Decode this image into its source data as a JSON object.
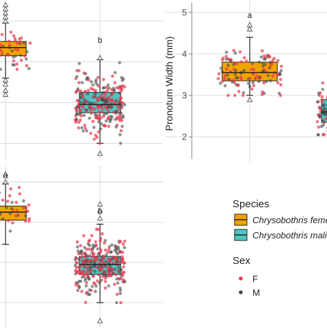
{
  "chart_data": [
    {
      "type": "box",
      "title": "",
      "xlabel": "",
      "ylabel": "",
      "categories": [
        "Chrysobothris femorata",
        "Chrysobothris mali"
      ],
      "ylim": [
        5.15,
        8.95
      ],
      "gridlines_y": [
        5.5,
        6.5,
        7.5,
        8.5
      ],
      "grid": true,
      "significance_letters": [
        "a",
        "b"
      ],
      "boxes": [
        {
          "category": "Chrysobothris femorata",
          "q1": 7.65,
          "median": 7.85,
          "q3": 8.0,
          "whisker_low": 7.1,
          "whisker_high": 8.45,
          "outliers_high": [
            8.5,
            8.6,
            8.7,
            8.8,
            8.9
          ],
          "outliers_low": [
            6.7,
            6.8,
            6.95,
            7.05
          ]
        },
        {
          "category": "Chrysobothris mali",
          "q1": 6.25,
          "median": 6.45,
          "q3": 6.75,
          "whisker_low": 5.5,
          "whisker_high": 7.55,
          "outliers_high": [
            7.6
          ],
          "outliers_low": [
            5.25
          ]
        }
      ]
    },
    {
      "type": "box",
      "title": "",
      "xlabel": "",
      "ylabel": "Pronotum Width (mm)",
      "categories": [
        "Chrysobothris femorata",
        "Chrysobothris mali"
      ],
      "ylim": [
        1.5,
        5.2
      ],
      "yticks": [
        2,
        3,
        4,
        5
      ],
      "grid": true,
      "significance_letters": [
        "a",
        "b"
      ],
      "boxes": [
        {
          "category": "Chrysobothris femorata",
          "q1": 3.35,
          "median": 3.55,
          "q3": 3.8,
          "whisker_low": 3.0,
          "whisker_high": 4.4,
          "outliers_high": [
            4.6,
            4.7
          ],
          "outliers_low": [
            2.9
          ]
        },
        {
          "category": "Chrysobothris mali",
          "q1": 2.35,
          "median": 2.6,
          "q3": 2.9,
          "whisker_low": 2.05,
          "whisker_high": 3.3,
          "outliers_high": [],
          "outliers_low": []
        }
      ]
    },
    {
      "type": "box",
      "title": "",
      "xlabel": "",
      "ylabel": "",
      "categories": [
        "Chrysobothris femorata",
        "Chrysobothris mali"
      ],
      "ylim": [
        4.95,
        8.9
      ],
      "gridlines_y": [
        5.5,
        6.5,
        7.5,
        8.5
      ],
      "grid": true,
      "significance_letters": [
        "a",
        "b"
      ],
      "boxes": [
        {
          "category": "Chrysobothris femorata",
          "q1": 7.55,
          "median": 7.75,
          "q3": 7.9,
          "whisker_low": 6.95,
          "whisker_high": 8.45,
          "outliers_high": [
            8.5,
            8.7
          ],
          "outliers_low": []
        },
        {
          "category": "Chrysobothris mali",
          "q1": 6.2,
          "median": 6.45,
          "q3": 6.65,
          "whisker_low": 5.5,
          "whisker_high": 7.45,
          "outliers_high": [
            7.6,
            7.8,
            7.95
          ],
          "outliers_low": [
            5.05
          ]
        }
      ]
    }
  ],
  "colors": {
    "femorata_fill": "#F0A400",
    "mali_fill": "#4DC6C2",
    "female_point": "#E8384F",
    "male_point": "#4A4A4A",
    "grid": "#D0D0D0",
    "axis": "#7F7F7F",
    "outlier_marker": "#555555"
  },
  "legend": {
    "species_title": "Species",
    "species": [
      {
        "label": "Chrysobothris femorata",
        "color": "#F0A400"
      },
      {
        "label": "Chrysobothris mali",
        "color": "#4DC6C2"
      }
    ],
    "sex_title": "Sex",
    "sex": [
      {
        "label": "F",
        "color": "#E8384F"
      },
      {
        "label": "M",
        "color": "#4A4A4A"
      }
    ]
  }
}
